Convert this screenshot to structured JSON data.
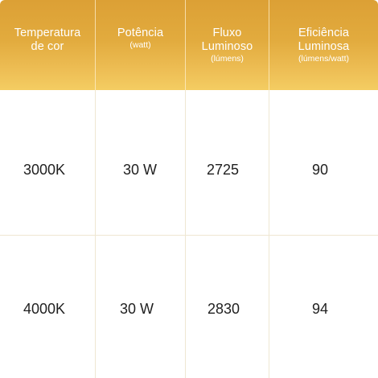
{
  "table": {
    "headers": [
      {
        "title": "Temperatura\nde cor",
        "subtitle": ""
      },
      {
        "title": "Potência",
        "subtitle": "(watt)"
      },
      {
        "title": "Fluxo\nLuminoso",
        "subtitle": "(lúmens)"
      },
      {
        "title": "Eficiência\nLuminosa",
        "subtitle": "(lúmens/watt)"
      }
    ],
    "rows": [
      {
        "color_temp": "3000K",
        "power": "30 W",
        "flux": "2725",
        "efficiency": "90"
      },
      {
        "color_temp": "4000K",
        "power": "30 W",
        "flux": "2830",
        "efficiency": "94"
      }
    ]
  },
  "colors": {
    "header_gradient_top": "#dca035",
    "header_gradient_bottom": "#f4cd62",
    "header_text": "#ffffff",
    "grid_line": "#efe7d2",
    "body_text": "#1f1f1f"
  }
}
